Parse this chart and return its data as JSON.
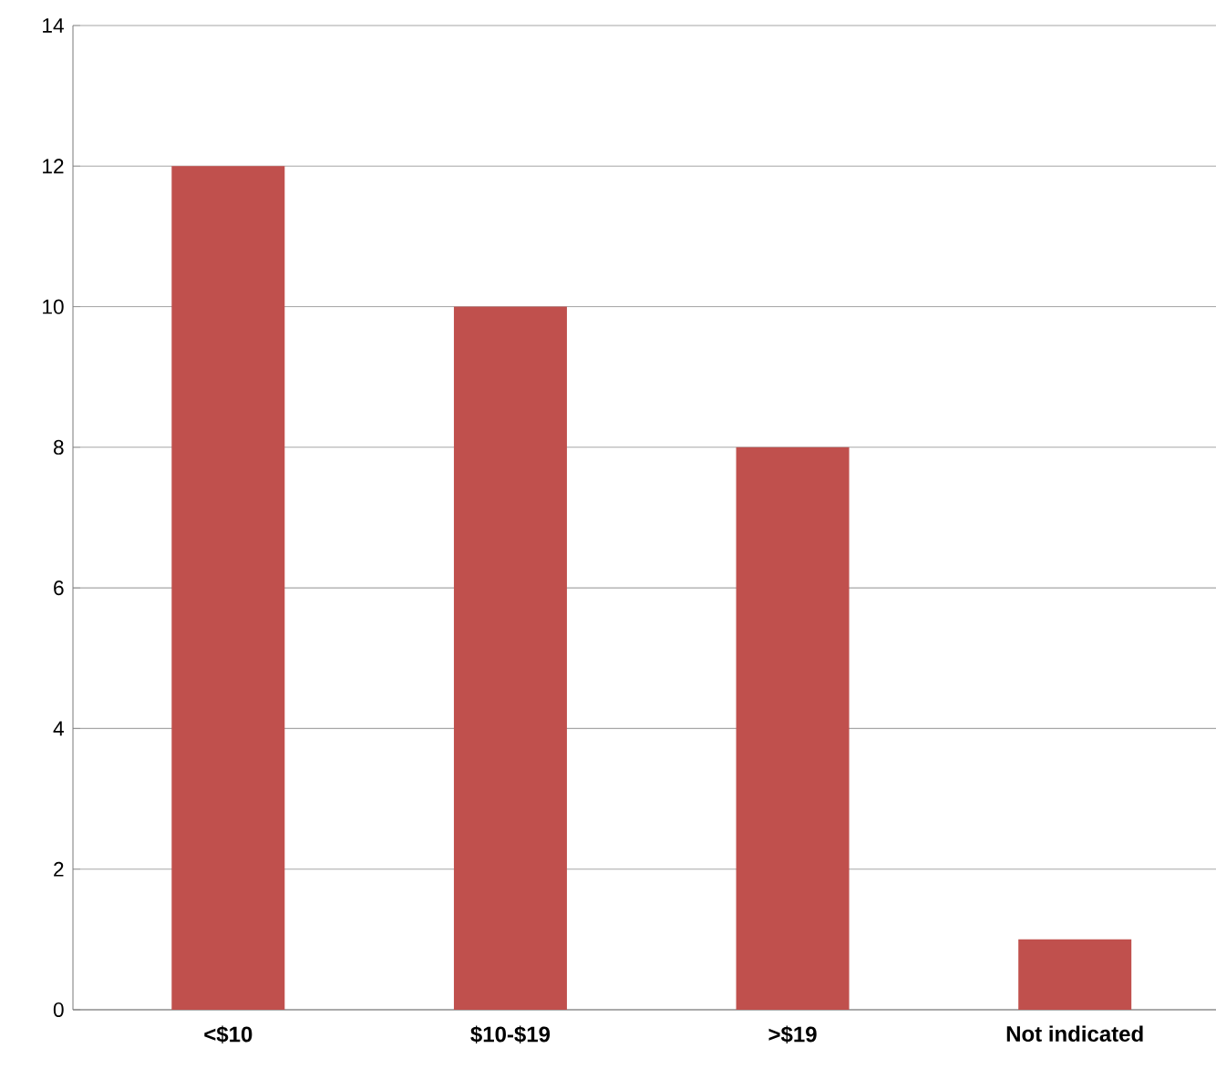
{
  "chart_data": {
    "type": "bar",
    "categories": [
      "<$10",
      "$10-$19",
      ">$19",
      "Not indicated"
    ],
    "values": [
      12,
      10,
      8,
      1
    ],
    "color": "#c0504d",
    "ylim": [
      0,
      14
    ],
    "yticks": [
      0,
      2,
      4,
      6,
      8,
      10,
      12,
      14
    ],
    "grid": "y"
  }
}
